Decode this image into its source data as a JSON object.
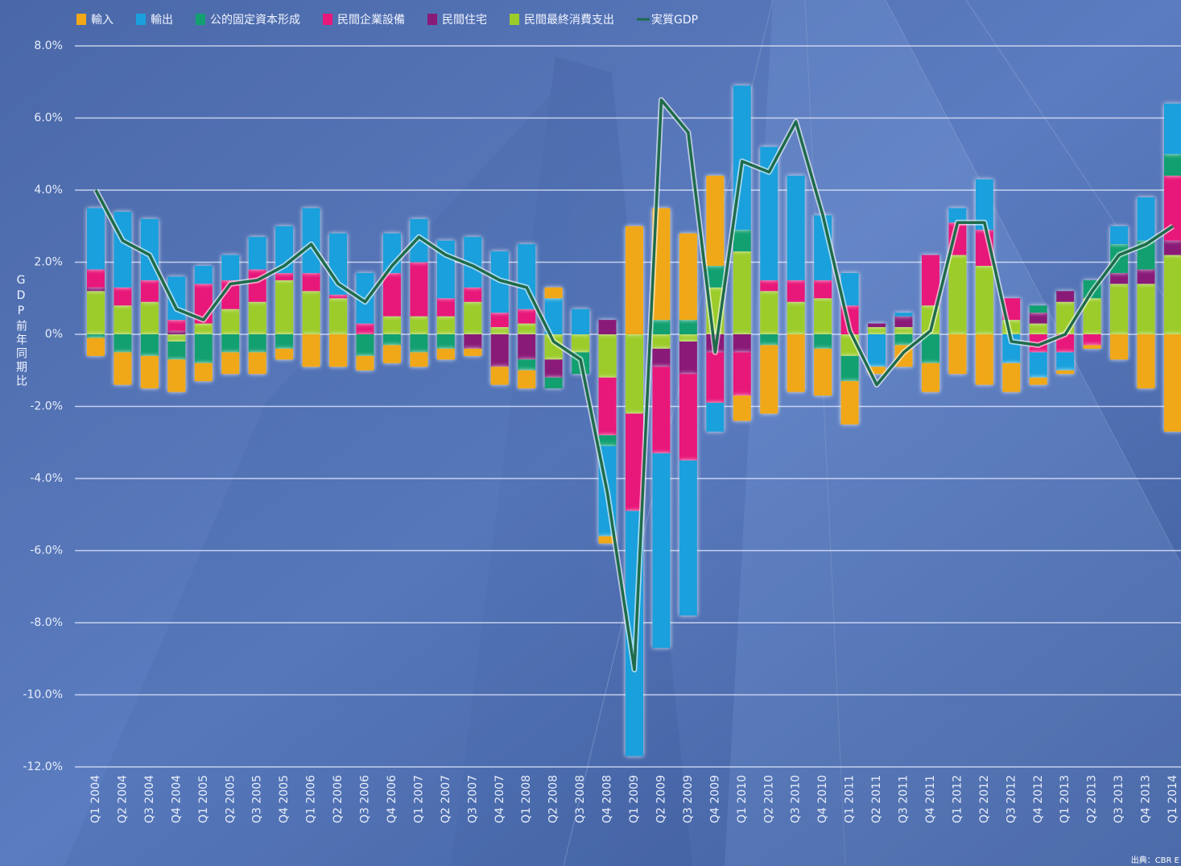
{
  "chart_data": {
    "type": "bar",
    "stacked": true,
    "y_label": "GDP前年同期比",
    "source": "出典：CBR E",
    "categories": [
      "Q1 2004",
      "Q2 2004",
      "Q3 2004",
      "Q4 2004",
      "Q1 2005",
      "Q2 2005",
      "Q3 2005",
      "Q4 2005",
      "Q1 2006",
      "Q2 2006",
      "Q3 2006",
      "Q4 2006",
      "Q1 2007",
      "Q2 2007",
      "Q3 2007",
      "Q4 2007",
      "Q1 2008",
      "Q2 2008",
      "Q3 2008",
      "Q4 2008",
      "Q1 2009",
      "Q2 2009",
      "Q3 2009",
      "Q4 2009",
      "Q1 2010",
      "Q2 2010",
      "Q3 2010",
      "Q4 2010",
      "Q1 2011",
      "Q2 2011",
      "Q3 2011",
      "Q4 2011",
      "Q1 2012",
      "Q2 2012",
      "Q3 2012",
      "Q4 2012",
      "Q1 2013",
      "Q2 2013",
      "Q3 2013",
      "Q4 2013",
      "Q1 2014"
    ],
    "series": [
      {
        "name": "輸入",
        "color": "#f0a818",
        "values": [
          -0.5,
          -0.9,
          -0.9,
          -0.9,
          -0.5,
          -0.6,
          -0.6,
          -0.3,
          -0.9,
          -0.9,
          -0.4,
          -0.5,
          -0.4,
          -0.3,
          -0.2,
          -0.5,
          -0.5,
          0.3,
          0,
          -0.2,
          3.0,
          3.1,
          2.4,
          2.5,
          -0.7,
          -1.9,
          -1.6,
          -1.3,
          -1.2,
          -0.2,
          -0.6,
          -0.8,
          -1.1,
          -1.4,
          -0.8,
          -0.2,
          -0.1,
          -0.1,
          -0.7,
          -1.5,
          -2.7
        ]
      },
      {
        "name": "輸出",
        "color": "#1aa0dc",
        "values": [
          1.7,
          2.1,
          1.7,
          1.2,
          0.5,
          0.7,
          0.9,
          1.3,
          1.8,
          1.7,
          1.4,
          1.1,
          1.2,
          1.6,
          1.4,
          1.7,
          1.8,
          1.0,
          0.7,
          -2.5,
          -6.8,
          -5.4,
          -4.3,
          -0.8,
          4.0,
          3.7,
          2.9,
          1.8,
          0.9,
          -0.9,
          0.1,
          0,
          0.4,
          1.4,
          -0.8,
          -0.7,
          -0.5,
          0,
          0.5,
          1.2,
          1.4
        ]
      },
      {
        "name": "公的固定資本形成",
        "color": "#12a070",
        "values": [
          -0.1,
          -0.5,
          -0.6,
          -0.5,
          -0.8,
          -0.5,
          -0.5,
          -0.4,
          0,
          0,
          -0.6,
          -0.3,
          -0.5,
          -0.4,
          0,
          0,
          -0.3,
          -0.3,
          -0.6,
          -0.3,
          0,
          0.4,
          0.4,
          0.6,
          0.6,
          -0.3,
          0,
          -0.4,
          -0.7,
          0,
          -0.3,
          -0.8,
          0,
          0,
          0,
          0.2,
          0,
          0.5,
          0.8,
          0.8,
          0.6
        ]
      },
      {
        "name": "民間企業設備",
        "color": "#e8177a",
        "values": [
          0.5,
          0.5,
          0.6,
          0.3,
          1.1,
          0.8,
          0.9,
          0.2,
          0.5,
          0.1,
          0.3,
          1.2,
          1.5,
          0.5,
          0.4,
          0.4,
          0.4,
          0,
          0,
          -1.6,
          -2.7,
          -2.4,
          -2.4,
          -1.4,
          -1.2,
          0.3,
          0.6,
          0.5,
          0.8,
          0,
          0,
          1.4,
          0.9,
          1.0,
          0.6,
          -0.5,
          -0.5,
          -0.3,
          0,
          0,
          1.8
        ]
      },
      {
        "name": "民間住宅",
        "color": "#8a1a78",
        "values": [
          0.1,
          0,
          0,
          0.1,
          0,
          0,
          0,
          0,
          0,
          0,
          0,
          0,
          0,
          0,
          -0.4,
          -0.9,
          -0.7,
          -0.5,
          0,
          0.4,
          0,
          -0.5,
          -0.9,
          -0.5,
          -0.5,
          0,
          0,
          0,
          0,
          0.1,
          0.3,
          0,
          0,
          0,
          0,
          0.3,
          0.3,
          0,
          0.3,
          0.4,
          0.4
        ]
      },
      {
        "name": "民間最終消費支出",
        "color": "#9ccc2a",
        "values": [
          1.2,
          0.8,
          0.9,
          -0.2,
          0.3,
          0.7,
          0.9,
          1.5,
          1.2,
          1.0,
          0,
          0.5,
          0.5,
          0.5,
          0.9,
          0.2,
          0.3,
          -0.7,
          -0.5,
          -1.2,
          -2.2,
          -0.4,
          -0.2,
          1.3,
          2.3,
          1.2,
          0.9,
          1.0,
          -0.6,
          0.2,
          0.2,
          0.8,
          2.2,
          1.9,
          0.4,
          0.3,
          0.9,
          1.0,
          1.4,
          1.4,
          2.2
        ]
      },
      {
        "name": "実質GDP",
        "color": "#1e6b4a",
        "type": "line",
        "values": [
          4.0,
          2.6,
          2.2,
          0.7,
          0.4,
          1.4,
          1.5,
          1.9,
          2.5,
          1.4,
          0.9,
          1.9,
          2.7,
          2.2,
          1.9,
          1.5,
          1.3,
          -0.2,
          -0.7,
          -4.4,
          -9.3,
          6.5,
          5.6,
          -0.5,
          4.8,
          4.5,
          5.9,
          3.3,
          0.1,
          -1.4,
          -0.5,
          0.1,
          3.1,
          3.1,
          -0.2,
          -0.3,
          0.0,
          1.2,
          2.2,
          2.5,
          3.0
        ]
      }
    ],
    "stack_order": [
      5,
      4,
      3,
      2,
      1,
      0
    ],
    "ylim": [
      -12,
      8
    ],
    "yticks": [
      {
        "value": 8,
        "label": "8.0%"
      },
      {
        "value": 6,
        "label": "6.0%"
      },
      {
        "value": 4,
        "label": "4.0%"
      },
      {
        "value": 2,
        "label": "2.0%"
      },
      {
        "value": 0,
        "label": "0%"
      },
      {
        "value": -2,
        "label": "-2.0%"
      },
      {
        "value": -4,
        "label": "-4.0%"
      },
      {
        "value": -6,
        "label": "-6.0%"
      },
      {
        "value": -8,
        "label": "-8.0%"
      },
      {
        "value": -10,
        "label": "-10.0%"
      },
      {
        "value": -12,
        "label": "-12.0%"
      }
    ],
    "grid": true
  }
}
